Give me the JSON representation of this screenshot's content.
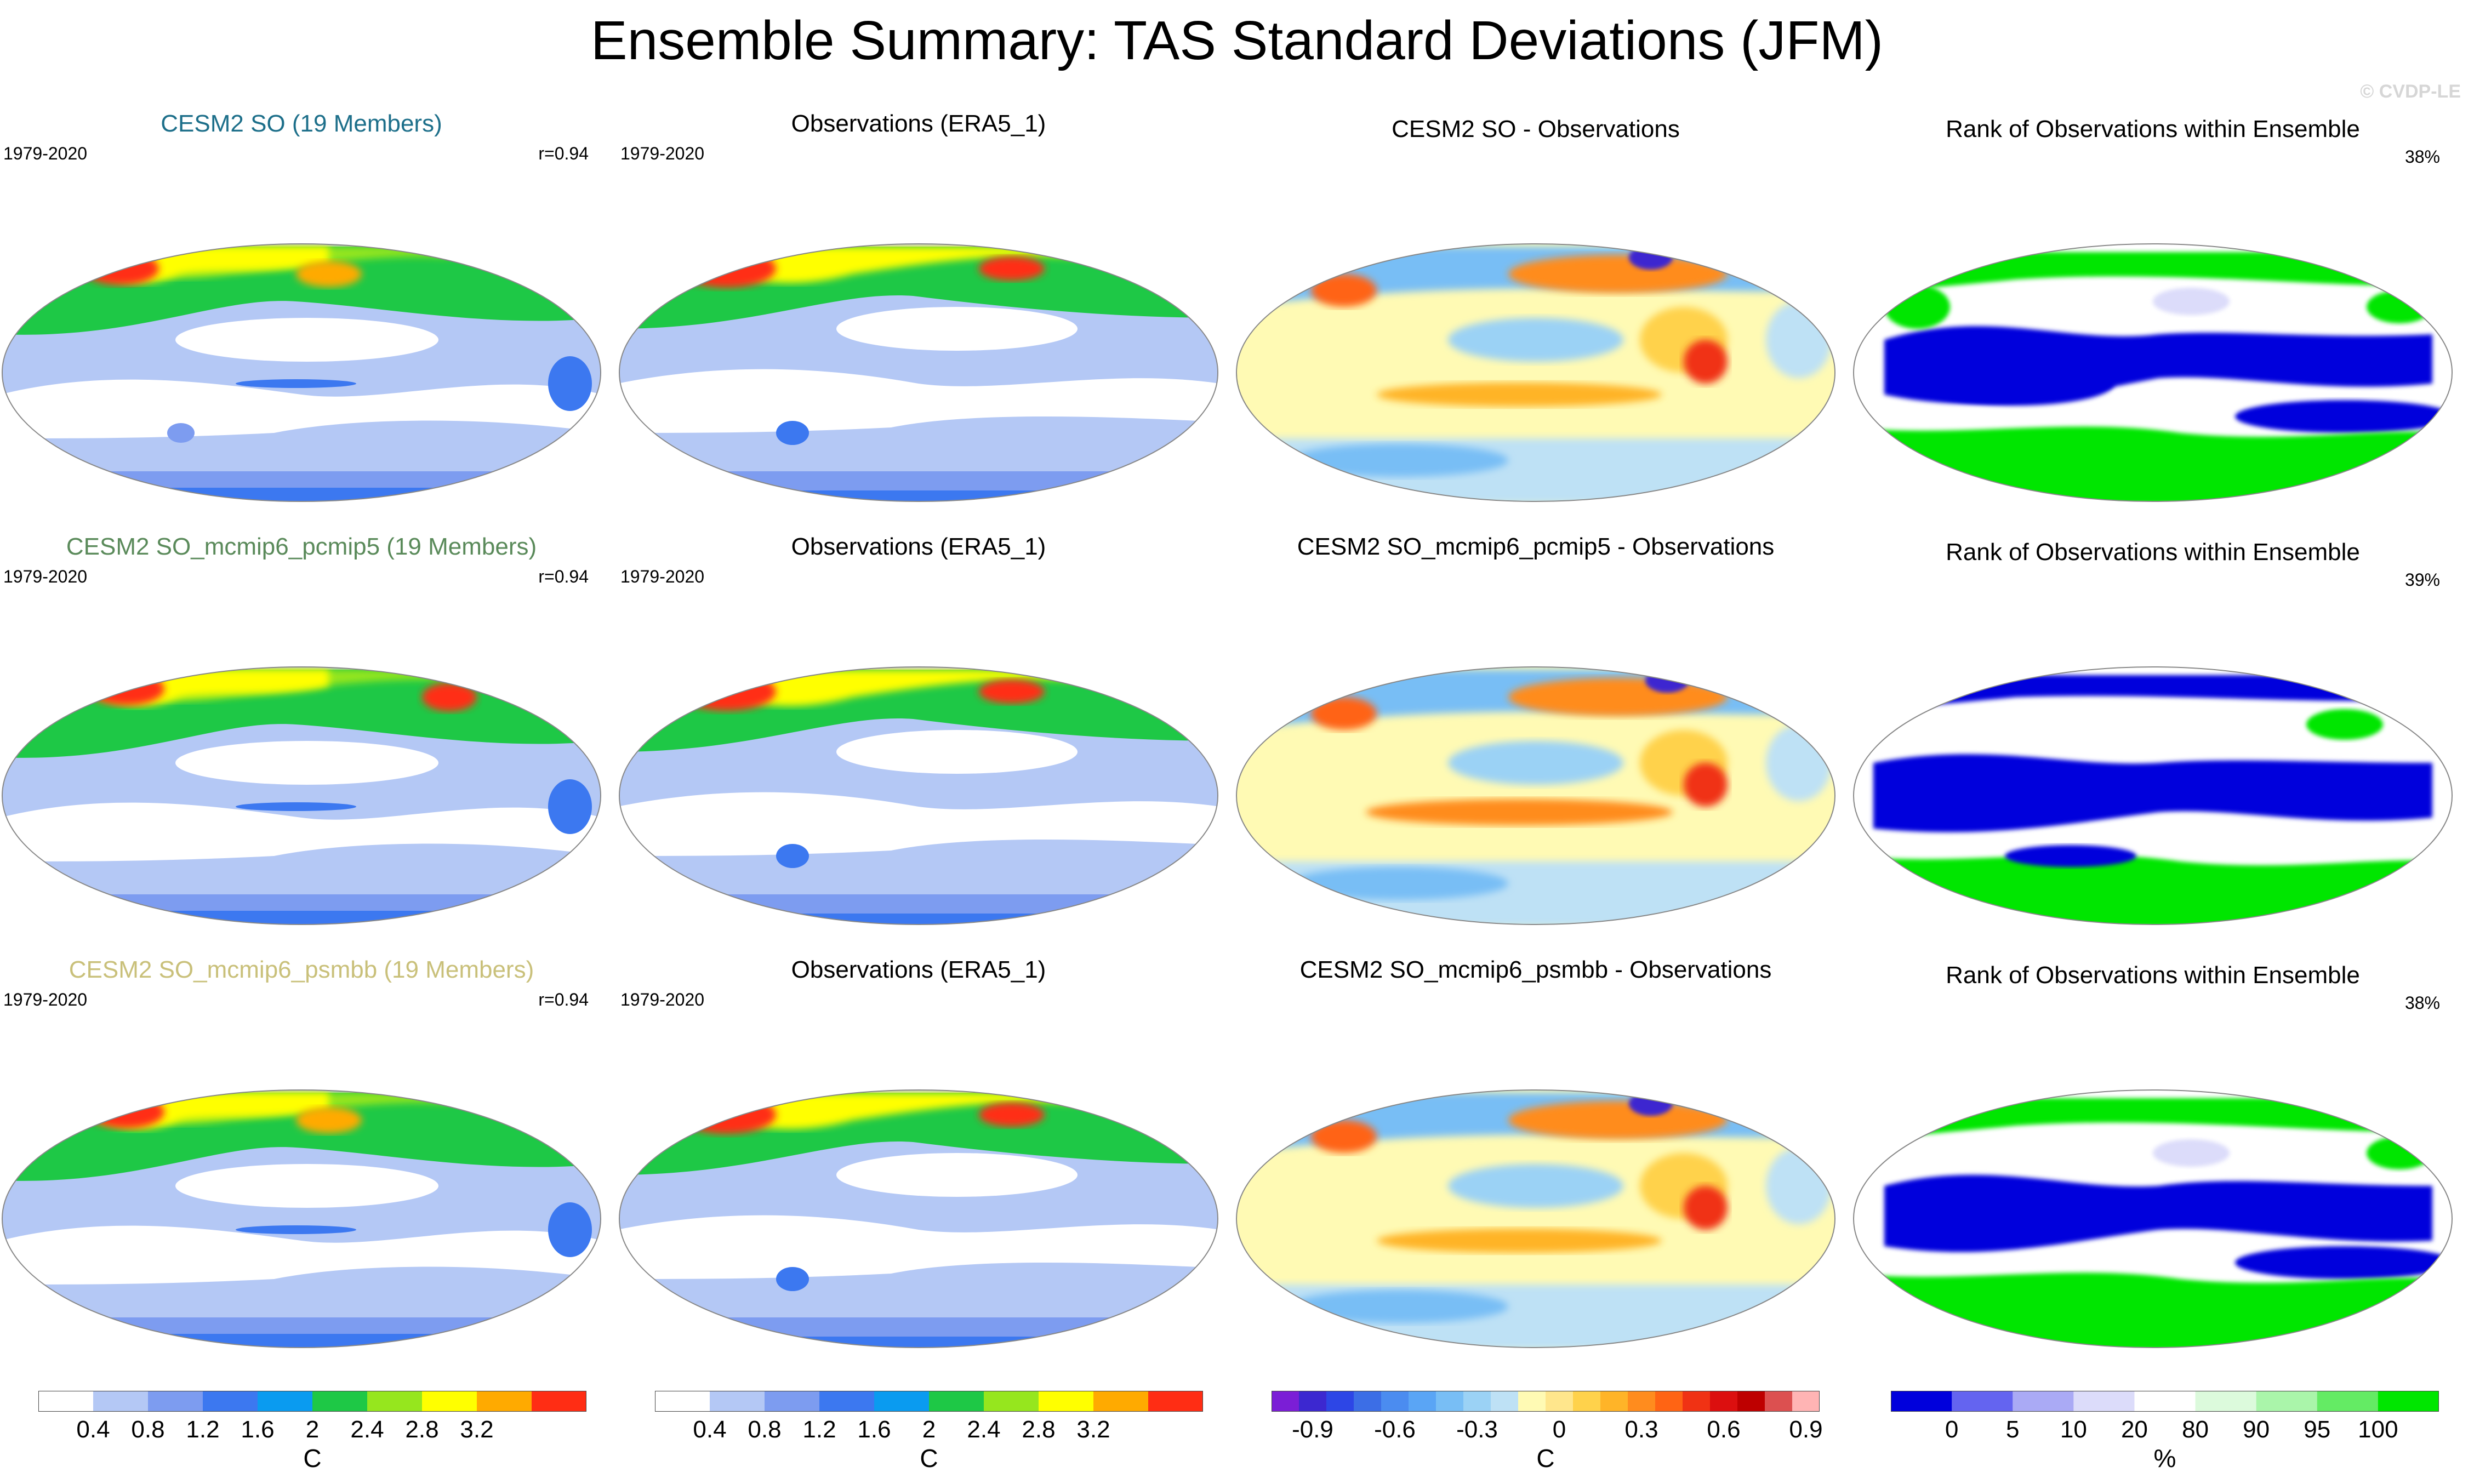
{
  "title": "Ensemble Summary: TAS Standard Deviations (JFM)",
  "copyright": "© CVDP-LE",
  "colors": {
    "ensemble_title_row1": "#1d6f8a",
    "ensemble_title_row2": "#5a8a5a",
    "ensemble_title_row3": "#c9c07a"
  },
  "rows": [
    {
      "ensemble": {
        "title": "CESM2 SO (19 Members)",
        "years": "1979-2020",
        "stat": "r=0.94"
      },
      "obs": {
        "title": "Observations (ERA5_1)",
        "years": "1979-2020"
      },
      "diff": {
        "title": "CESM2 SO - Observations"
      },
      "rank": {
        "title": "Rank of Observations within Ensemble",
        "stat": "38%"
      }
    },
    {
      "ensemble": {
        "title": "CESM2 SO_mcmip6_pcmip5 (19 Members)",
        "years": "1979-2020",
        "stat": "r=0.94"
      },
      "obs": {
        "title": "Observations (ERA5_1)",
        "years": "1979-2020"
      },
      "diff": {
        "title": "CESM2 SO_mcmip6_pcmip5 - Observations"
      },
      "rank": {
        "title": "Rank of Observations within Ensemble",
        "stat": "39%"
      }
    },
    {
      "ensemble": {
        "title": "CESM2 SO_mcmip6_psmbb (19 Members)",
        "years": "1979-2020",
        "stat": "r=0.94"
      },
      "obs": {
        "title": "Observations (ERA5_1)",
        "years": "1979-2020"
      },
      "diff": {
        "title": "CESM2 SO_mcmip6_psmbb - Observations"
      },
      "rank": {
        "title": "Rank of Observations within Ensemble",
        "stat": "38%"
      }
    }
  ],
  "chart_data": [
    {
      "type": "heatmap",
      "name": "std colorbar (ensemble + observations)",
      "units": "C",
      "tick_labels": [
        "0.4",
        "0.8",
        "1.2",
        "1.6",
        "2",
        "2.4",
        "2.8",
        "3.2"
      ],
      "colors": [
        "#ffffff",
        "#b4c8f5",
        "#7d9cf0",
        "#3c78f0",
        "#0a9bf0",
        "#1ec846",
        "#96e61e",
        "#ffff00",
        "#ffaa00",
        "#ff2d14"
      ]
    },
    {
      "type": "heatmap",
      "name": "difference colorbar",
      "units": "C",
      "tick_labels": [
        "-0.9",
        "-0.6",
        "-0.3",
        "0",
        "0.3",
        "0.6",
        "0.9"
      ],
      "colors": [
        "#7b1ed6",
        "#3c28d0",
        "#2d46e6",
        "#3c6ee6",
        "#4b8cf0",
        "#5aa5f5",
        "#78bef5",
        "#9bd2f5",
        "#bee1f5",
        "#fffab4",
        "#ffe68c",
        "#ffd24b",
        "#ffb428",
        "#ff8c1e",
        "#ff6414",
        "#f03214",
        "#dc0f0f",
        "#be0000",
        "#dc5050",
        "#ffb4b4"
      ]
    },
    {
      "type": "heatmap",
      "name": "rank colorbar",
      "units": "%",
      "tick_labels": [
        "0",
        "5",
        "10",
        "20",
        "80",
        "90",
        "95",
        "100"
      ],
      "colors": [
        "#0000dc",
        "#6464f0",
        "#aaaaf5",
        "#dcdcfa",
        "#ffffff",
        "#dcfadc",
        "#aaf5aa",
        "#64eb64",
        "#00e600"
      ]
    }
  ]
}
